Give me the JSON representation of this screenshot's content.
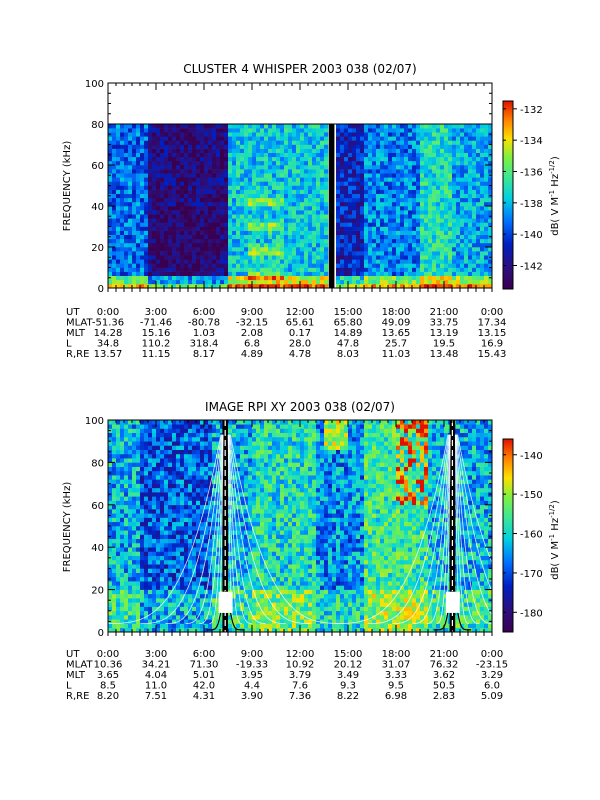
{
  "chart_data": [
    {
      "type": "heatmap",
      "title": "CLUSTER 4 WHISPER 2003 038 (02/07)",
      "ylabel": "FREQUENCY (kHz)",
      "yticks": [
        "0",
        "20",
        "40",
        "60",
        "80",
        "100"
      ],
      "ylim": [
        0,
        100
      ],
      "data_ceiling_khz": 80,
      "colorbar": {
        "label": "dB( V M⁻¹ Hz⁻¹ᐟ²)",
        "label_parts": [
          "dB( V M",
          "-1",
          " Hz",
          "-1/2",
          ")"
        ],
        "range": [
          -143.5,
          -131.5
        ],
        "ticks": [
          "-132",
          "-134",
          "-136",
          "-138",
          "-140",
          "-142"
        ],
        "colormap": [
          "#3a0050",
          "#2a1080",
          "#0020c0",
          "#0070ff",
          "#00d0e0",
          "#40e890",
          "#80f040",
          "#ffe000",
          "#ff8000",
          "#e01000"
        ]
      },
      "ephemeris": {
        "row_labels": [
          "UT",
          "MLAT",
          "MLT",
          "L",
          "R,RE"
        ],
        "columns": [
          [
            "0:00",
            "-51.36",
            "14.28",
            "34.8",
            "13.57"
          ],
          [
            "3:00",
            "-71.46",
            "15.16",
            "110.2",
            "11.15"
          ],
          [
            "6:00",
            "-80.78",
            "1.03",
            "318.4",
            "8.17"
          ],
          [
            "9:00",
            "-32.15",
            "2.08",
            "6.8",
            "4.89"
          ],
          [
            "12:00",
            "65.61",
            "0.17",
            "28.0",
            "4.78"
          ],
          [
            "15:00",
            "65.80",
            "14.89",
            "47.8",
            "8.03"
          ],
          [
            "18:00",
            "49.09",
            "13.65",
            "25.7",
            "11.03"
          ],
          [
            "21:00",
            "33.75",
            "13.19",
            "19.5",
            "13.48"
          ],
          [
            "0:00",
            "17.34",
            "13.15",
            "16.9",
            "15.43"
          ]
        ]
      },
      "data_gap_hours": [
        [
          13.8,
          14.15
        ]
      ]
    },
    {
      "type": "heatmap",
      "title": "IMAGE RPI XY 2003 038 (02/07)",
      "ylabel": "FREQUENCY (kHz)",
      "yticks": [
        "0",
        "20",
        "40",
        "60",
        "80",
        "100"
      ],
      "ylim": [
        0,
        100
      ],
      "colorbar": {
        "label_parts": [
          "dB( V M",
          "-1",
          " Hz",
          "-1/2",
          ")"
        ],
        "range": [
          -185,
          -136
        ],
        "ticks": [
          "-140",
          "-150",
          "-160",
          "-170",
          "-180"
        ],
        "colormap": [
          "#3a0050",
          "#2a1080",
          "#0020c0",
          "#0070ff",
          "#00d0e0",
          "#40e890",
          "#80f040",
          "#ffe000",
          "#ff8000",
          "#e01000"
        ]
      },
      "ephemeris": {
        "row_labels": [
          "UT",
          "MLAT",
          "MLT",
          "L",
          "R,RE"
        ],
        "columns": [
          [
            "0:00",
            "10.36",
            "3.65",
            "8.5",
            "8.20"
          ],
          [
            "3:00",
            "34.21",
            "4.04",
            "11.0",
            "7.51"
          ],
          [
            "6:00",
            "71.30",
            "5.01",
            "42.0",
            "4.31"
          ],
          [
            "9:00",
            "-19.33",
            "3.95",
            "4.4",
            "3.90"
          ],
          [
            "12:00",
            "10.92",
            "3.79",
            "7.6",
            "7.36"
          ],
          [
            "15:00",
            "20.12",
            "3.49",
            "9.3",
            "8.22"
          ],
          [
            "18:00",
            "31.07",
            "3.33",
            "9.5",
            "6.98"
          ],
          [
            "21:00",
            "76.32",
            "3.62",
            "50.5",
            "2.83"
          ],
          [
            "0:00",
            "-23.15",
            "3.29",
            "6.0",
            "5.09"
          ]
        ]
      },
      "data_gap_hours": [
        [
          7.15,
          7.5
        ],
        [
          21.35,
          21.7
        ]
      ],
      "perigee_hours": [
        7.35,
        21.55
      ]
    }
  ]
}
